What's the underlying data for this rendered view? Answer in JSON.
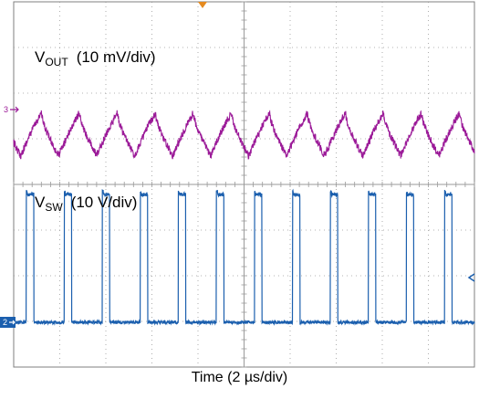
{
  "chart_data": {
    "type": "line",
    "title": "",
    "xlabel": "Time (2 µs/div)",
    "grid": true,
    "divisions": {
      "x": 10,
      "y": 8
    },
    "x_unit": "µs",
    "xlim": [
      0,
      20
    ],
    "series": [
      {
        "name": "V",
        "name_sub": "OUT",
        "scale": "(10 mV/div)",
        "channel": "3",
        "color": "#9b1a98",
        "shape": "ripple",
        "period_us": 1.65,
        "first_dip_us": 0.3,
        "amplitude_mv_pp": 10.5,
        "noise_mv": 0.8
      },
      {
        "name": "V",
        "name_sub": "SW",
        "scale": "(10 V/div)",
        "channel": "2",
        "color": "#1b5fae",
        "shape": "pulse",
        "period_us": 1.65,
        "first_rise_us": 0.55,
        "high_us": 0.32,
        "low_level_v": 0,
        "high_level_v": 28
      }
    ]
  }
}
